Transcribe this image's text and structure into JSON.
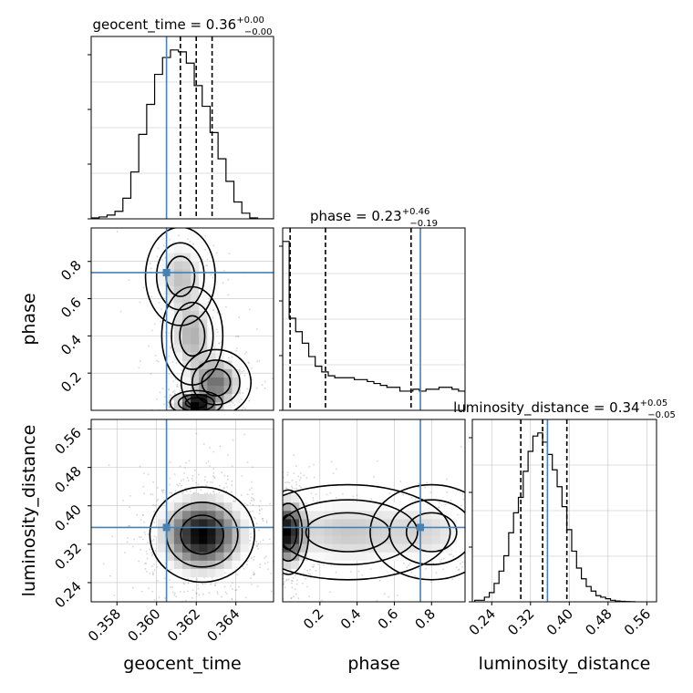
{
  "chart_data": {
    "type": "corner",
    "parameters": [
      "geocent_time",
      "phase",
      "luminosity_distance"
    ],
    "injection": {
      "geocent_time": 0.3605,
      "phase": 0.74,
      "luminosity_distance": 0.355
    },
    "panels": [
      {
        "id": "geocent_time-1d",
        "kind": "hist1d",
        "title": {
          "name": "geocent_time",
          "median": "0.36",
          "plus": "+0.00",
          "minus": "−0.00"
        },
        "xlim": [
          0.3567,
          0.3659
        ],
        "quantiles": [
          0.3612,
          0.362,
          0.3628
        ],
        "bins": [
          0.3567,
          0.3571,
          0.3575,
          0.3579,
          0.3583,
          0.3587,
          0.3591,
          0.3595,
          0.3599,
          0.3603,
          0.3607,
          0.3611,
          0.3615,
          0.3619,
          0.3623,
          0.3627,
          0.3631,
          0.3635,
          0.3639,
          0.3643,
          0.3647,
          0.3651,
          0.3655,
          0.3659
        ],
        "counts": [
          0.5,
          1,
          2,
          4,
          11,
          25,
          45,
          61,
          77,
          86,
          90,
          89,
          83,
          71,
          60,
          46,
          32,
          20,
          9,
          3,
          0.5,
          0,
          0
        ],
        "xtick_labels": [],
        "xlabel": ""
      },
      {
        "id": "phase-1d",
        "kind": "hist1d",
        "title": {
          "name": "phase",
          "median": "0.23",
          "plus": "+0.46",
          "minus": "−0.19"
        },
        "xlim": [
          0.0,
          0.98
        ],
        "quantiles": [
          0.04,
          0.23,
          0.69
        ],
        "bins": [
          0.0,
          0.035,
          0.07,
          0.105,
          0.14,
          0.175,
          0.21,
          0.245,
          0.28,
          0.315,
          0.35,
          0.385,
          0.42,
          0.455,
          0.49,
          0.525,
          0.56,
          0.595,
          0.63,
          0.665,
          0.7,
          0.735,
          0.77,
          0.805,
          0.84,
          0.875,
          0.91,
          0.945,
          0.98
        ],
        "counts": [
          88,
          48,
          41,
          35,
          28,
          23,
          20,
          18,
          17,
          17,
          17,
          16,
          16,
          15,
          14,
          13,
          12,
          12,
          10,
          10,
          11,
          10,
          11,
          11,
          12,
          12,
          11,
          10
        ],
        "xtick_labels": [],
        "xlabel": ""
      },
      {
        "id": "luminosity_distance-1d",
        "kind": "hist1d",
        "title": {
          "name": "luminosity_distance",
          "median": "0.34",
          "plus": "+0.05",
          "minus": "−0.05"
        },
        "xlim": [
          0.2,
          0.58
        ],
        "quantiles": [
          0.3,
          0.345,
          0.395
        ],
        "bins": [
          0.205,
          0.215,
          0.225,
          0.235,
          0.245,
          0.255,
          0.265,
          0.275,
          0.285,
          0.295,
          0.305,
          0.315,
          0.325,
          0.335,
          0.345,
          0.355,
          0.365,
          0.375,
          0.385,
          0.395,
          0.405,
          0.415,
          0.425,
          0.435,
          0.445,
          0.455,
          0.465,
          0.475,
          0.485,
          0.495,
          0.505,
          0.515,
          0.525,
          0.535
        ],
        "counts": [
          1,
          1,
          3,
          6,
          12,
          20,
          30,
          45,
          58,
          68,
          85,
          98,
          108,
          110,
          104,
          96,
          86,
          75,
          62,
          47,
          33,
          22,
          15,
          10,
          7,
          4,
          3,
          2,
          1,
          0.5,
          0.3,
          0.2,
          0.1
        ],
        "xtick_labels": [
          "0.24",
          "0.32",
          "0.40",
          "0.48",
          "0.56"
        ],
        "xticks": [
          0.24,
          0.32,
          0.4,
          0.48,
          0.56
        ],
        "xlabel": "luminosity_distance"
      },
      {
        "id": "phase-vs-geocent_time",
        "kind": "hist2d",
        "xparam": "geocent_time",
        "yparam": "phase",
        "xlim": [
          0.3567,
          0.3659
        ],
        "ylim": [
          0.0,
          0.98
        ],
        "ytick_labels": [
          "0.2",
          "0.4",
          "0.6",
          "0.8"
        ],
        "yticks": [
          0.2,
          0.4,
          0.6,
          0.8
        ],
        "ylabel": "phase",
        "xtick_labels": [],
        "xlabel": "",
        "blobs": [
          {
            "x": 0.362,
            "y": 0.04,
            "sx": 0.0006,
            "sy": 0.03,
            "w": 1.0
          },
          {
            "x": 0.363,
            "y": 0.15,
            "sx": 0.0008,
            "sy": 0.08,
            "w": 0.55
          },
          {
            "x": 0.3618,
            "y": 0.4,
            "sx": 0.0007,
            "sy": 0.12,
            "w": 0.35
          },
          {
            "x": 0.3612,
            "y": 0.72,
            "sx": 0.0008,
            "sy": 0.12,
            "w": 0.3
          }
        ]
      },
      {
        "id": "luminosity_distance-vs-geocent_time",
        "kind": "hist2d",
        "xparam": "geocent_time",
        "yparam": "luminosity_distance",
        "xlim": [
          0.3567,
          0.3659
        ],
        "ylim": [
          0.2,
          0.58
        ],
        "ytick_labels": [
          "0.24",
          "0.32",
          "0.40",
          "0.48",
          "0.56"
        ],
        "yticks": [
          0.24,
          0.32,
          0.4,
          0.48,
          0.56
        ],
        "ylabel": "luminosity_distance",
        "xtick_labels": [
          "0.358",
          "0.360",
          "0.362",
          "0.364"
        ],
        "xticks": [
          0.358,
          0.36,
          0.362,
          0.364
        ],
        "xlabel": "geocent_time",
        "blobs": [
          {
            "x": 0.3623,
            "y": 0.34,
            "sx": 0.0012,
            "sy": 0.045,
            "w": 1.0
          }
        ]
      },
      {
        "id": "luminosity_distance-vs-phase",
        "kind": "hist2d",
        "xparam": "phase",
        "yparam": "luminosity_distance",
        "xlim": [
          0.0,
          0.98
        ],
        "ylim": [
          0.2,
          0.58
        ],
        "ytick_labels": [],
        "ylabel": "",
        "xtick_labels": [
          "0.2",
          "0.4",
          "0.6",
          "0.8"
        ],
        "xticks": [
          0.2,
          0.4,
          0.6,
          0.8
        ],
        "xlabel": "phase",
        "blobs": [
          {
            "x": 0.03,
            "y": 0.345,
            "sx": 0.05,
            "sy": 0.04,
            "w": 1.0
          },
          {
            "x": 0.35,
            "y": 0.345,
            "sx": 0.25,
            "sy": 0.045,
            "w": 0.35
          },
          {
            "x": 0.8,
            "y": 0.345,
            "sx": 0.15,
            "sy": 0.045,
            "w": 0.22
          }
        ]
      }
    ],
    "colors": {
      "hist": "#000000",
      "truth": "#4682b4",
      "grid": "#c0c0c0"
    },
    "grid": true
  }
}
